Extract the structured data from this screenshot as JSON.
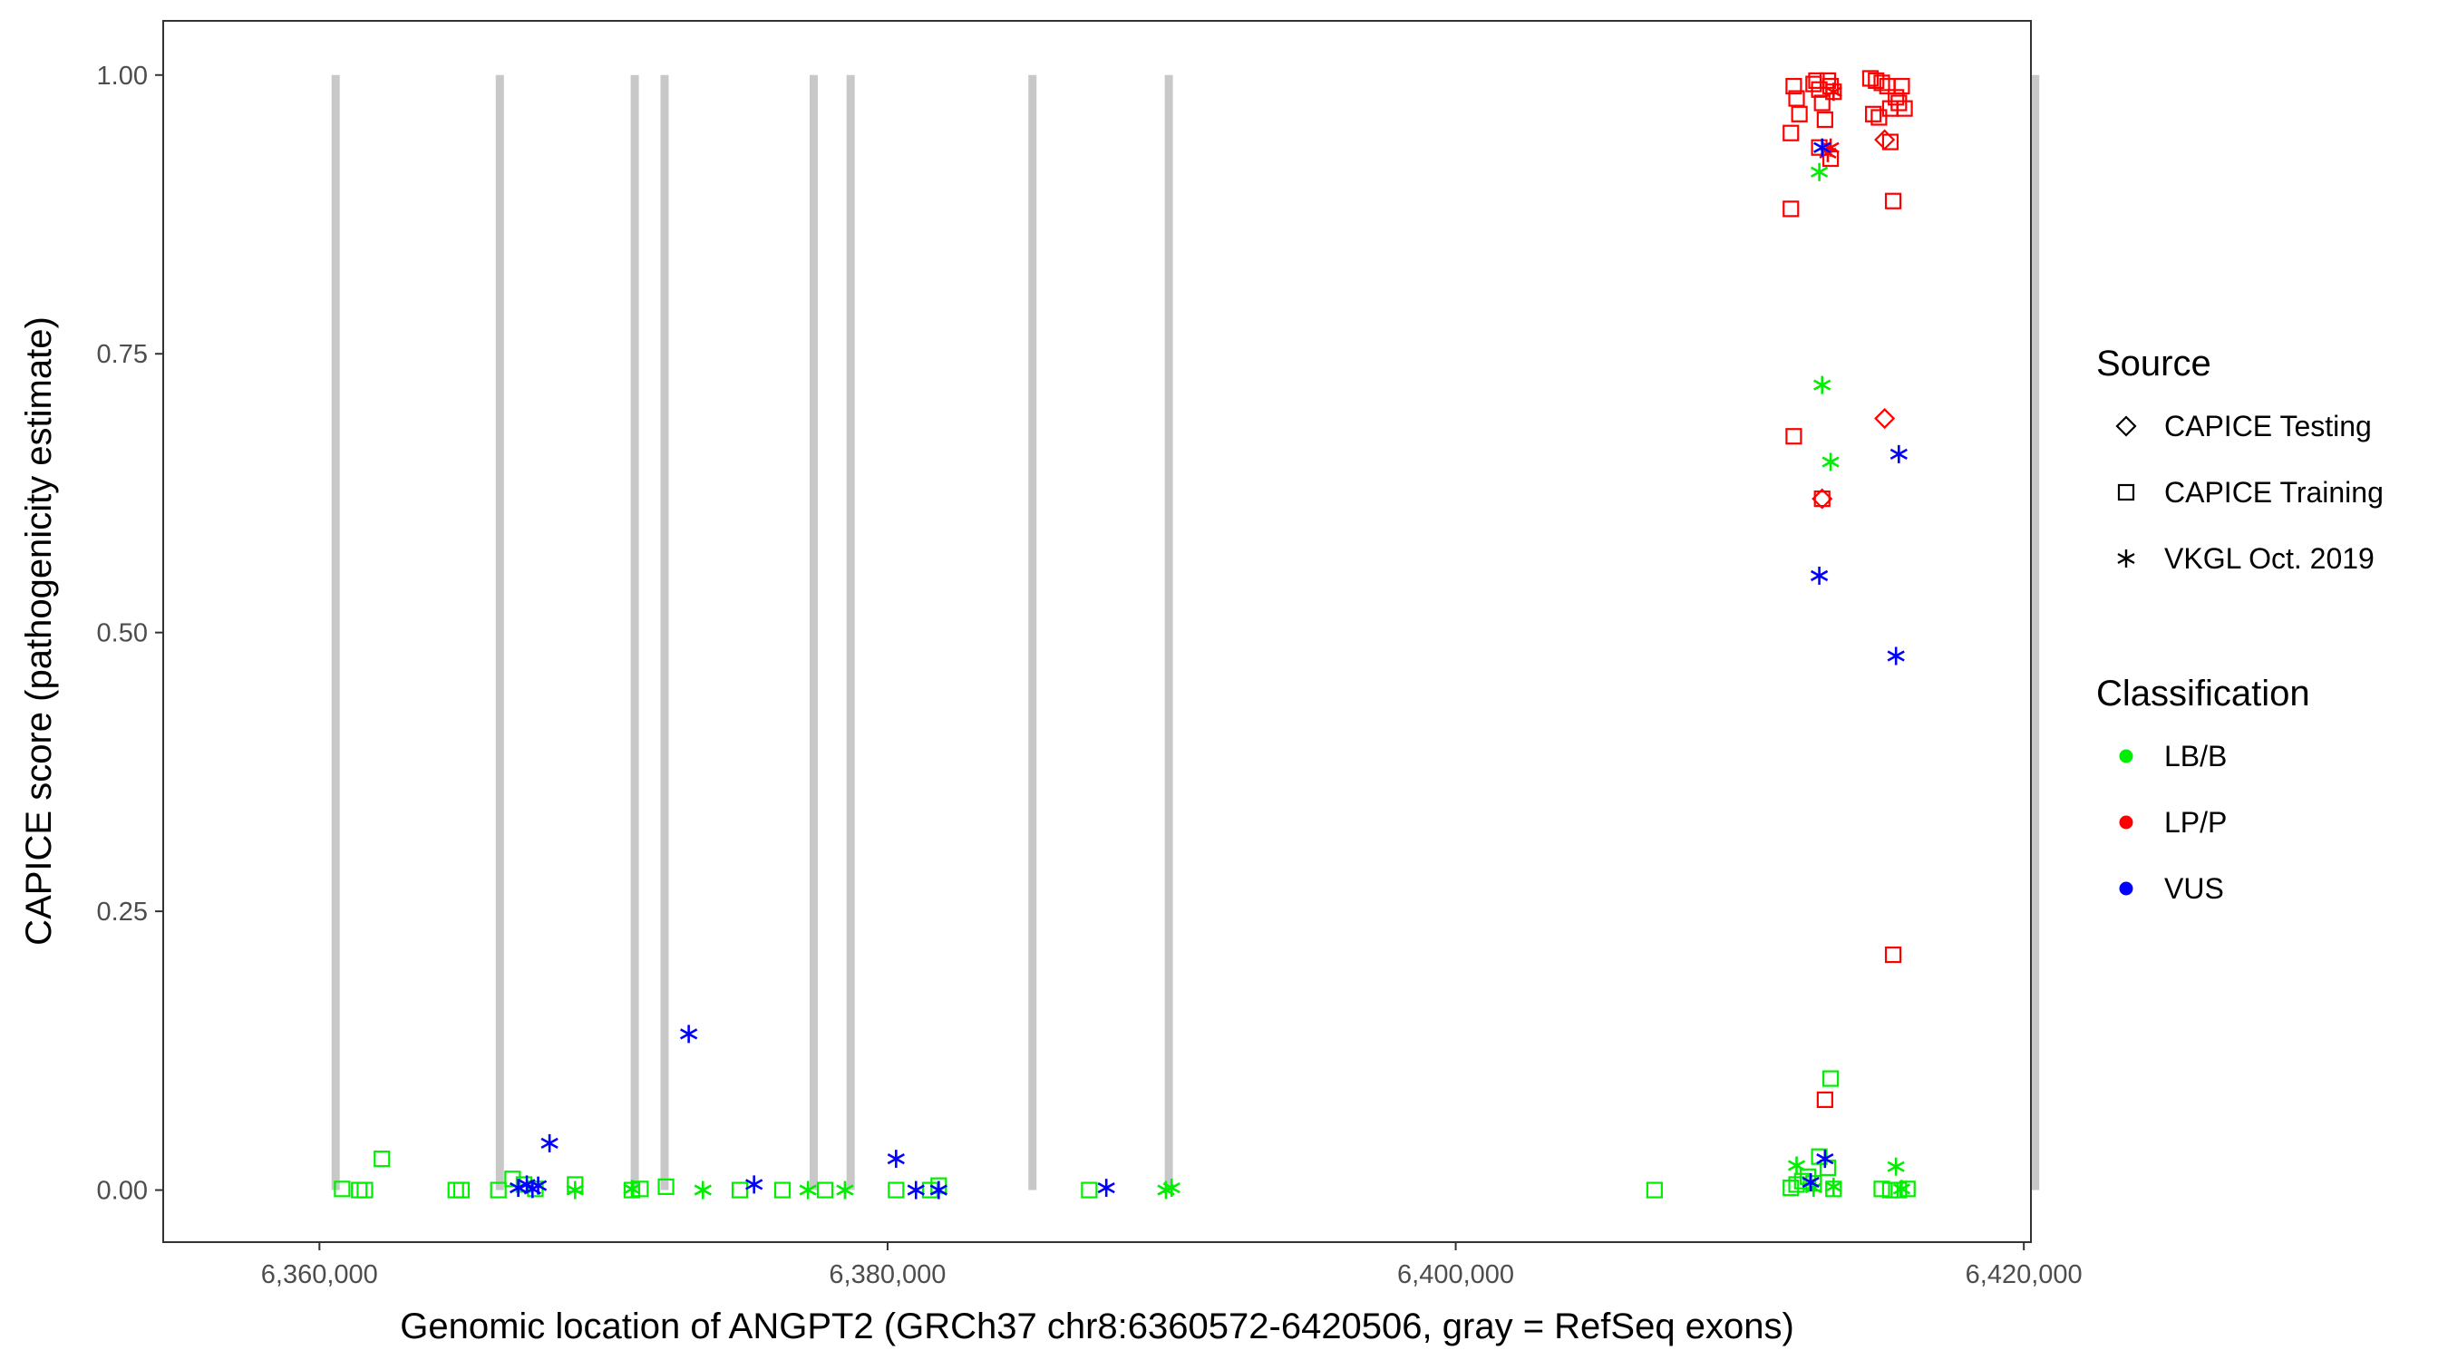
{
  "chart_data": {
    "type": "scatter",
    "title": "",
    "xlabel": "Genomic location of ANGPT2 (GRCh37 chr8:6360572-6420506, gray = RefSeq exons)",
    "ylabel": "CAPICE score (pathogenicity estimate)",
    "xlim": [
      6354500,
      6420250
    ],
    "ylim": [
      -0.0467,
      1.0486
    ],
    "x_ticks": [
      6360000,
      6380000,
      6400000,
      6420000
    ],
    "x_tick_labels": [
      "6,360,000",
      "6,380,000",
      "6,400,000",
      "6,420,000"
    ],
    "y_ticks": [
      0,
      0.25,
      0.5,
      0.75,
      1.0
    ],
    "y_tick_labels": [
      "0.00",
      "0.25",
      "0.50",
      "0.75",
      "1.00"
    ],
    "grid": false,
    "exons": {
      "color": "#c8c8c8",
      "y_range": [
        0,
        1.0
      ],
      "positions": [
        6360572,
        6366350,
        6371100,
        6372150,
        6377400,
        6378700,
        6385100,
        6389900,
        6420400
      ]
    },
    "legend": {
      "placement": "right",
      "source": {
        "title": "Source",
        "items": [
          {
            "label": "CAPICE Testing",
            "shape": "diamond"
          },
          {
            "label": "CAPICE Training",
            "shape": "square"
          },
          {
            "label": "VKGL Oct. 2019",
            "shape": "asterisk"
          }
        ]
      },
      "classification": {
        "title": "Classification",
        "items": [
          {
            "label": "LB/B",
            "color": "#00ee00"
          },
          {
            "label": "LP/P",
            "color": "#ff0000"
          },
          {
            "label": "VUS",
            "color": "#0000ff"
          }
        ]
      }
    },
    "series": [
      {
        "name": "CAPICE Training — LB/B",
        "shape": "square",
        "color": "#00ee00",
        "points": [
          [
            6360800,
            0.001
          ],
          [
            6361400,
            0.0
          ],
          [
            6361600,
            0.0
          ],
          [
            6362200,
            0.028
          ],
          [
            6364800,
            0.0
          ],
          [
            6365000,
            0.0
          ],
          [
            6366300,
            0.0
          ],
          [
            6366800,
            0.01
          ],
          [
            6367200,
            0.005
          ],
          [
            6367600,
            0.001
          ],
          [
            6369000,
            0.005
          ],
          [
            6371000,
            0.0
          ],
          [
            6371300,
            0.001
          ],
          [
            6372200,
            0.003
          ],
          [
            6374800,
            0.0
          ],
          [
            6376300,
            0.0
          ],
          [
            6377800,
            0.0
          ],
          [
            6380300,
            0.0
          ],
          [
            6381500,
            0.0
          ],
          [
            6381800,
            0.004
          ],
          [
            6387100,
            0.0
          ],
          [
            6407000,
            0.0
          ],
          [
            6411800,
            0.002
          ],
          [
            6412000,
            0.005
          ],
          [
            6412200,
            0.008
          ],
          [
            6412400,
            0.012
          ],
          [
            6412600,
            0.006
          ],
          [
            6412800,
            0.03
          ],
          [
            6413100,
            0.02
          ],
          [
            6413300,
            0.001
          ],
          [
            6413200,
            0.1
          ],
          [
            6415000,
            0.001
          ],
          [
            6415300,
            0.0
          ],
          [
            6415600,
            0.0
          ],
          [
            6415900,
            0.001
          ]
        ]
      },
      {
        "name": "CAPICE Training — LP/P",
        "shape": "square",
        "color": "#ff0000",
        "points": [
          [
            6411900,
            0.99
          ],
          [
            6412000,
            0.979
          ],
          [
            6412100,
            0.965
          ],
          [
            6412600,
            0.992
          ],
          [
            6412700,
            0.995
          ],
          [
            6412800,
            0.987
          ],
          [
            6412900,
            0.975
          ],
          [
            6413000,
            0.96
          ],
          [
            6413100,
            0.995
          ],
          [
            6413200,
            0.99
          ],
          [
            6413300,
            0.985
          ],
          [
            6411800,
            0.948
          ],
          [
            6412800,
            0.935
          ],
          [
            6413200,
            0.925
          ],
          [
            6411800,
            0.88
          ],
          [
            6411900,
            0.676
          ],
          [
            6412900,
            0.62
          ],
          [
            6413000,
            0.081
          ],
          [
            6414600,
            0.997
          ],
          [
            6414800,
            0.995
          ],
          [
            6415000,
            0.993
          ],
          [
            6415200,
            0.99
          ],
          [
            6415500,
            0.98
          ],
          [
            6415700,
            0.99
          ],
          [
            6414700,
            0.965
          ],
          [
            6414900,
            0.962
          ],
          [
            6415300,
            0.97
          ],
          [
            6415600,
            0.975
          ],
          [
            6415800,
            0.97
          ],
          [
            6415300,
            0.94
          ],
          [
            6415400,
            0.887
          ],
          [
            6415400,
            0.211
          ]
        ]
      },
      {
        "name": "CAPICE Testing — LP/P",
        "shape": "diamond",
        "color": "#ff0000",
        "points": [
          [
            6412900,
            0.62
          ],
          [
            6415100,
            0.942
          ],
          [
            6415100,
            0.692
          ]
        ]
      },
      {
        "name": "VKGL Oct. 2019 — LB/B",
        "shape": "asterisk",
        "color": "#00ee00",
        "points": [
          [
            6367000,
            0.002
          ],
          [
            6369000,
            0.0
          ],
          [
            6371000,
            0.001
          ],
          [
            6373500,
            0.0
          ],
          [
            6377200,
            0.0
          ],
          [
            6378500,
            0.0
          ],
          [
            6389800,
            0.0
          ],
          [
            6390000,
            0.002
          ],
          [
            6412800,
            0.913
          ],
          [
            6412900,
            0.722
          ],
          [
            6413200,
            0.653
          ],
          [
            6412000,
            0.022
          ],
          [
            6412600,
            0.002
          ],
          [
            6413300,
            0.003
          ],
          [
            6415500,
            0.021
          ],
          [
            6415700,
            0.001
          ]
        ]
      },
      {
        "name": "VKGL Oct. 2019 — LP/P",
        "shape": "asterisk",
        "color": "#ff0000",
        "points": [
          [
            6413300,
            0.985
          ],
          [
            6413200,
            0.935
          ],
          [
            6413100,
            0.93
          ]
        ]
      },
      {
        "name": "VKGL Oct. 2019 — VUS",
        "shape": "asterisk",
        "color": "#0000ff",
        "points": [
          [
            6367000,
            0.002
          ],
          [
            6367300,
            0.005
          ],
          [
            6367500,
            0.001
          ],
          [
            6367700,
            0.004
          ],
          [
            6368100,
            0.042
          ],
          [
            6373000,
            0.14
          ],
          [
            6375300,
            0.005
          ],
          [
            6380300,
            0.028
          ],
          [
            6381000,
            0.0
          ],
          [
            6381800,
            0.0
          ],
          [
            6387700,
            0.002
          ],
          [
            6412900,
            0.935
          ],
          [
            6412800,
            0.551
          ],
          [
            6415600,
            0.66
          ],
          [
            6415500,
            0.479
          ],
          [
            6413000,
            0.028
          ],
          [
            6412500,
            0.007
          ]
        ]
      }
    ]
  }
}
